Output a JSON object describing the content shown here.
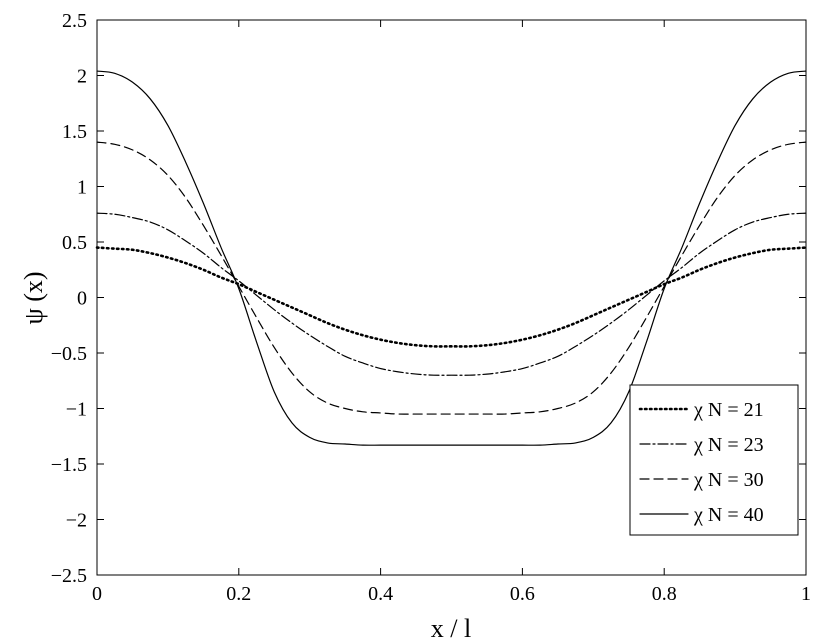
{
  "chart_data": {
    "type": "line",
    "title": "",
    "xlabel": "x / l",
    "ylabel": "ψ (x)",
    "xlim": [
      0,
      1
    ],
    "ylim": [
      -2.5,
      2.5
    ],
    "xticks": [
      0,
      0.2,
      0.4,
      0.6,
      0.8,
      1
    ],
    "xtick_labels": [
      "0",
      "0.2",
      "0.4",
      "0.6",
      "0.8",
      "1"
    ],
    "yticks": [
      -2.5,
      -2,
      -1.5,
      -1,
      -0.5,
      0,
      0.5,
      1,
      1.5,
      2,
      2.5
    ],
    "ytick_labels": [
      "−2.5",
      "−2",
      "−1.5",
      "−1",
      "−0.5",
      "0",
      "0.5",
      "1",
      "1.5",
      "2",
      "2.5"
    ],
    "grid": false,
    "legend_position": "lower-right",
    "x": [
      0,
      0.025,
      0.05,
      0.075,
      0.1,
      0.125,
      0.15,
      0.175,
      0.2,
      0.225,
      0.25,
      0.275,
      0.3,
      0.325,
      0.35,
      0.375,
      0.4,
      0.425,
      0.45,
      0.475,
      0.5,
      0.525,
      0.55,
      0.575,
      0.6,
      0.625,
      0.65,
      0.675,
      0.7,
      0.725,
      0.75,
      0.775,
      0.8,
      0.825,
      0.85,
      0.875,
      0.9,
      0.925,
      0.95,
      0.975,
      1
    ],
    "series": [
      {
        "name": "χ N = 21",
        "dash": "1.5,3.5",
        "stroke_width": 2.6,
        "values": [
          0.45,
          0.44,
          0.43,
          0.4,
          0.36,
          0.31,
          0.25,
          0.18,
          0.12,
          0.05,
          -0.02,
          -0.09,
          -0.16,
          -0.23,
          -0.29,
          -0.34,
          -0.38,
          -0.41,
          -0.43,
          -0.44,
          -0.44,
          -0.44,
          -0.43,
          -0.41,
          -0.38,
          -0.34,
          -0.29,
          -0.23,
          -0.16,
          -0.09,
          -0.02,
          0.05,
          0.12,
          0.18,
          0.25,
          0.31,
          0.36,
          0.4,
          0.43,
          0.44,
          0.45
        ]
      },
      {
        "name": "χ N = 23",
        "dash": "10,3,2,3",
        "stroke_width": 1.2,
        "values": [
          0.76,
          0.75,
          0.72,
          0.68,
          0.61,
          0.51,
          0.4,
          0.27,
          0.15,
          0.02,
          -0.11,
          -0.23,
          -0.34,
          -0.44,
          -0.53,
          -0.59,
          -0.64,
          -0.67,
          -0.69,
          -0.7,
          -0.7,
          -0.7,
          -0.69,
          -0.67,
          -0.64,
          -0.59,
          -0.53,
          -0.44,
          -0.34,
          -0.23,
          -0.11,
          0.02,
          0.15,
          0.27,
          0.4,
          0.51,
          0.61,
          0.68,
          0.72,
          0.75,
          0.76
        ]
      },
      {
        "name": "χ N = 30",
        "dash": "9,5",
        "stroke_width": 1.2,
        "values": [
          1.4,
          1.38,
          1.33,
          1.24,
          1.1,
          0.9,
          0.65,
          0.38,
          0.1,
          -0.18,
          -0.45,
          -0.68,
          -0.85,
          -0.95,
          -1.0,
          -1.03,
          -1.04,
          -1.05,
          -1.05,
          -1.05,
          -1.05,
          -1.05,
          -1.05,
          -1.05,
          -1.04,
          -1.03,
          -1.0,
          -0.95,
          -0.85,
          -0.68,
          -0.45,
          -0.18,
          0.1,
          0.38,
          0.65,
          0.9,
          1.1,
          1.24,
          1.33,
          1.38,
          1.4
        ]
      },
      {
        "name": "χ N = 40",
        "dash": "",
        "stroke_width": 1.2,
        "values": [
          2.04,
          2.02,
          1.94,
          1.79,
          1.55,
          1.22,
          0.85,
          0.45,
          0.08,
          -0.4,
          -0.85,
          -1.13,
          -1.26,
          -1.31,
          -1.32,
          -1.33,
          -1.33,
          -1.33,
          -1.33,
          -1.33,
          -1.33,
          -1.33,
          -1.33,
          -1.33,
          -1.33,
          -1.33,
          -1.32,
          -1.31,
          -1.26,
          -1.13,
          -0.85,
          -0.4,
          0.08,
          0.45,
          0.85,
          1.22,
          1.55,
          1.79,
          1.94,
          2.02,
          2.04
        ]
      }
    ]
  }
}
